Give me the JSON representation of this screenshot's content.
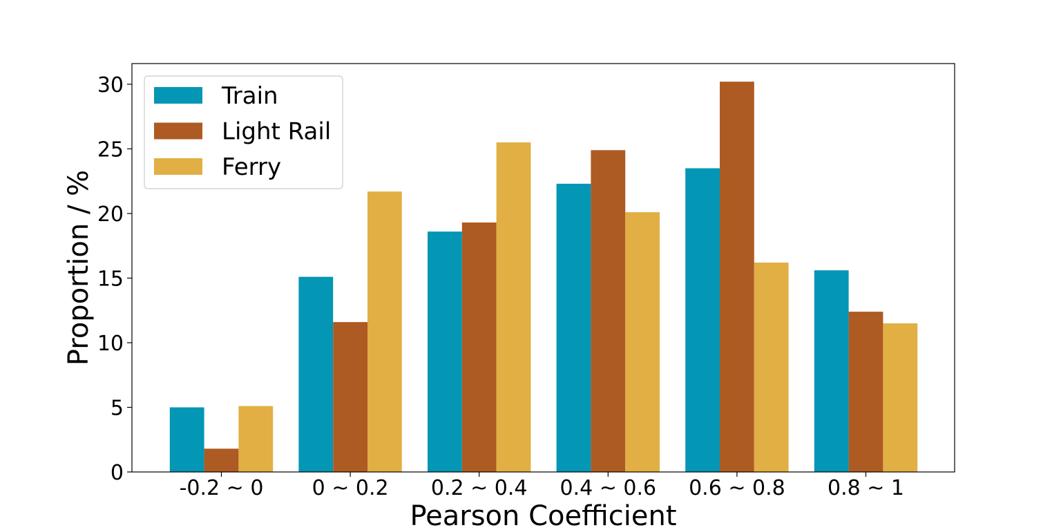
{
  "chart_data": {
    "type": "bar",
    "title": "",
    "xlabel": "Pearson Coefficient",
    "ylabel": "Proportion / %",
    "categories": [
      "-0.2 ~ 0",
      "0 ~ 0.2",
      "0.2 ~ 0.4",
      "0.4 ~ 0.6",
      "0.6 ~ 0.8",
      "0.8 ~ 1"
    ],
    "ylim": [
      0,
      31.6
    ],
    "yticks": [
      "0",
      "5",
      "10",
      "15",
      "20",
      "25",
      "30"
    ],
    "grid": false,
    "legend_position": "top-left",
    "series": [
      {
        "name": "Train",
        "color": "#0396b5",
        "values": [
          5.0,
          15.1,
          18.6,
          22.3,
          23.5,
          15.6
        ]
      },
      {
        "name": "Light Rail",
        "color": "#ae5a23",
        "values": [
          1.8,
          11.6,
          19.3,
          24.9,
          30.2,
          12.4
        ]
      },
      {
        "name": "Ferry",
        "color": "#e1af43",
        "values": [
          5.1,
          21.7,
          25.5,
          20.1,
          16.2,
          11.5
        ]
      }
    ]
  }
}
